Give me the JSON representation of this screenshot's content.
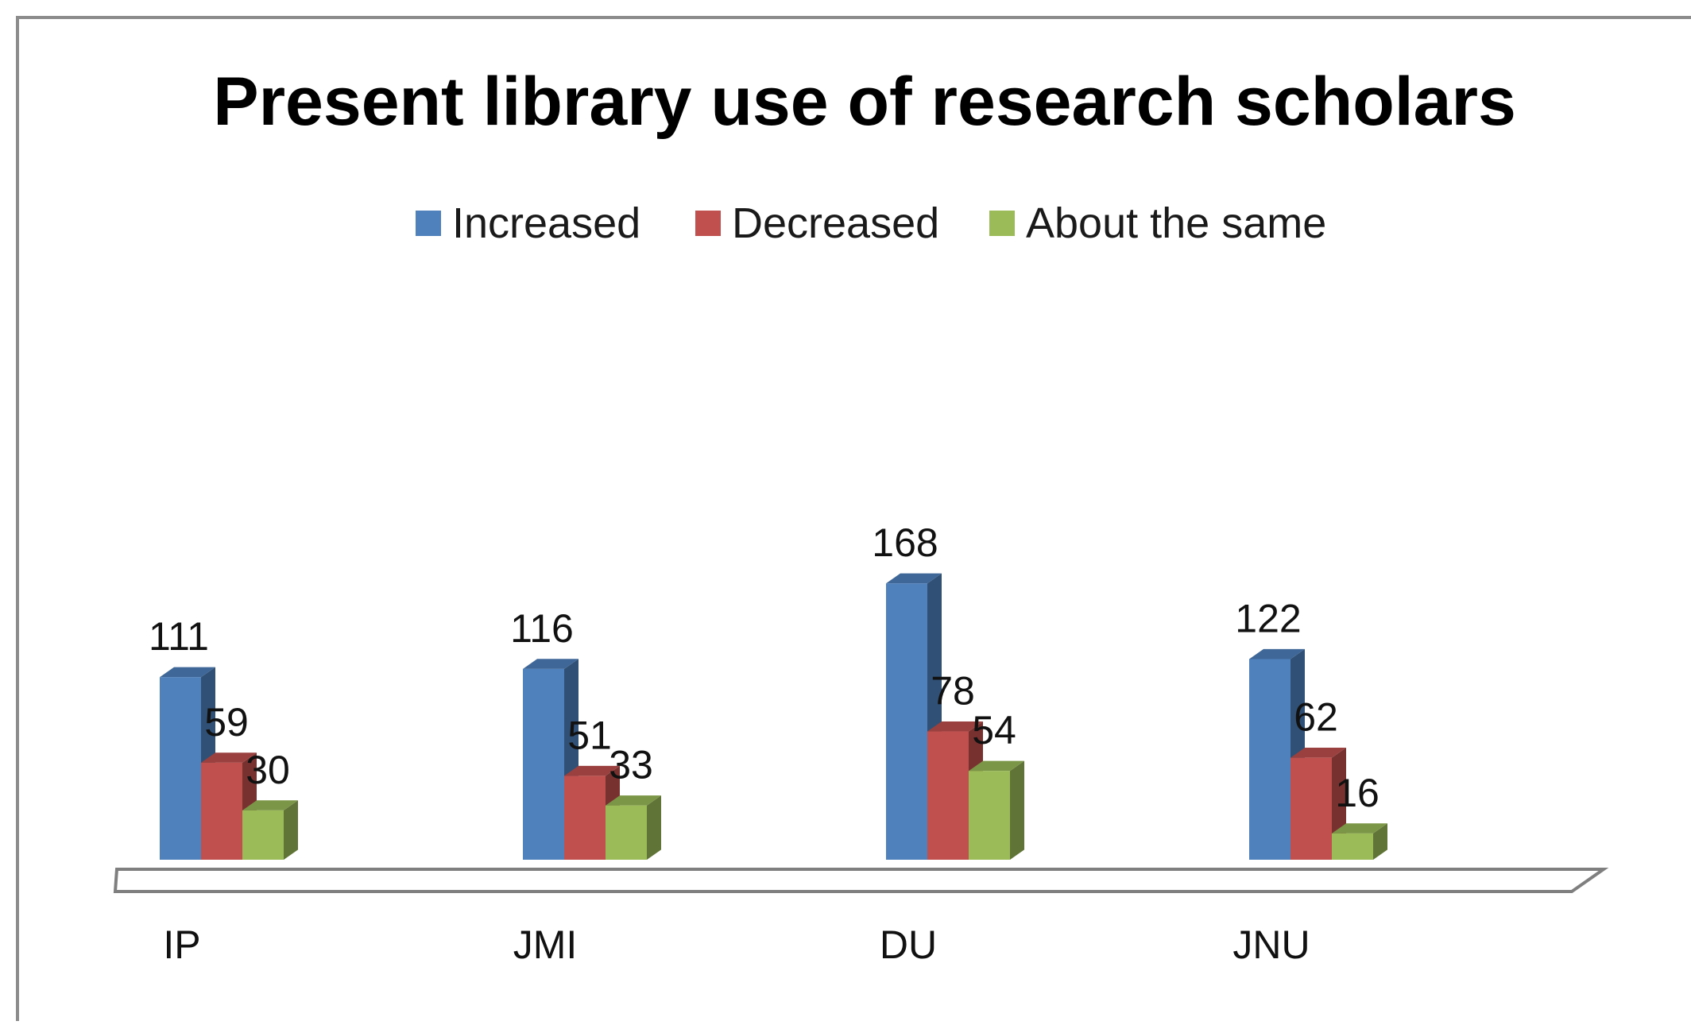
{
  "chart_data": {
    "type": "bar",
    "title": "Present library use of research scholars",
    "categories": [
      "IP",
      "JMI",
      "DU",
      "JNU"
    ],
    "series": [
      {
        "name": "Increased",
        "values": [
          111,
          116,
          168,
          122
        ],
        "color": "#4f81bd"
      },
      {
        "name": "Decreased",
        "values": [
          59,
          51,
          78,
          62
        ],
        "color": "#c0504d"
      },
      {
        "name": "About the same",
        "values": [
          30,
          33,
          54,
          16
        ],
        "color": "#9bbb59"
      }
    ],
    "legend_position": "top-center",
    "grid": false,
    "ylim": [
      0,
      180
    ],
    "style": "3d-column"
  }
}
